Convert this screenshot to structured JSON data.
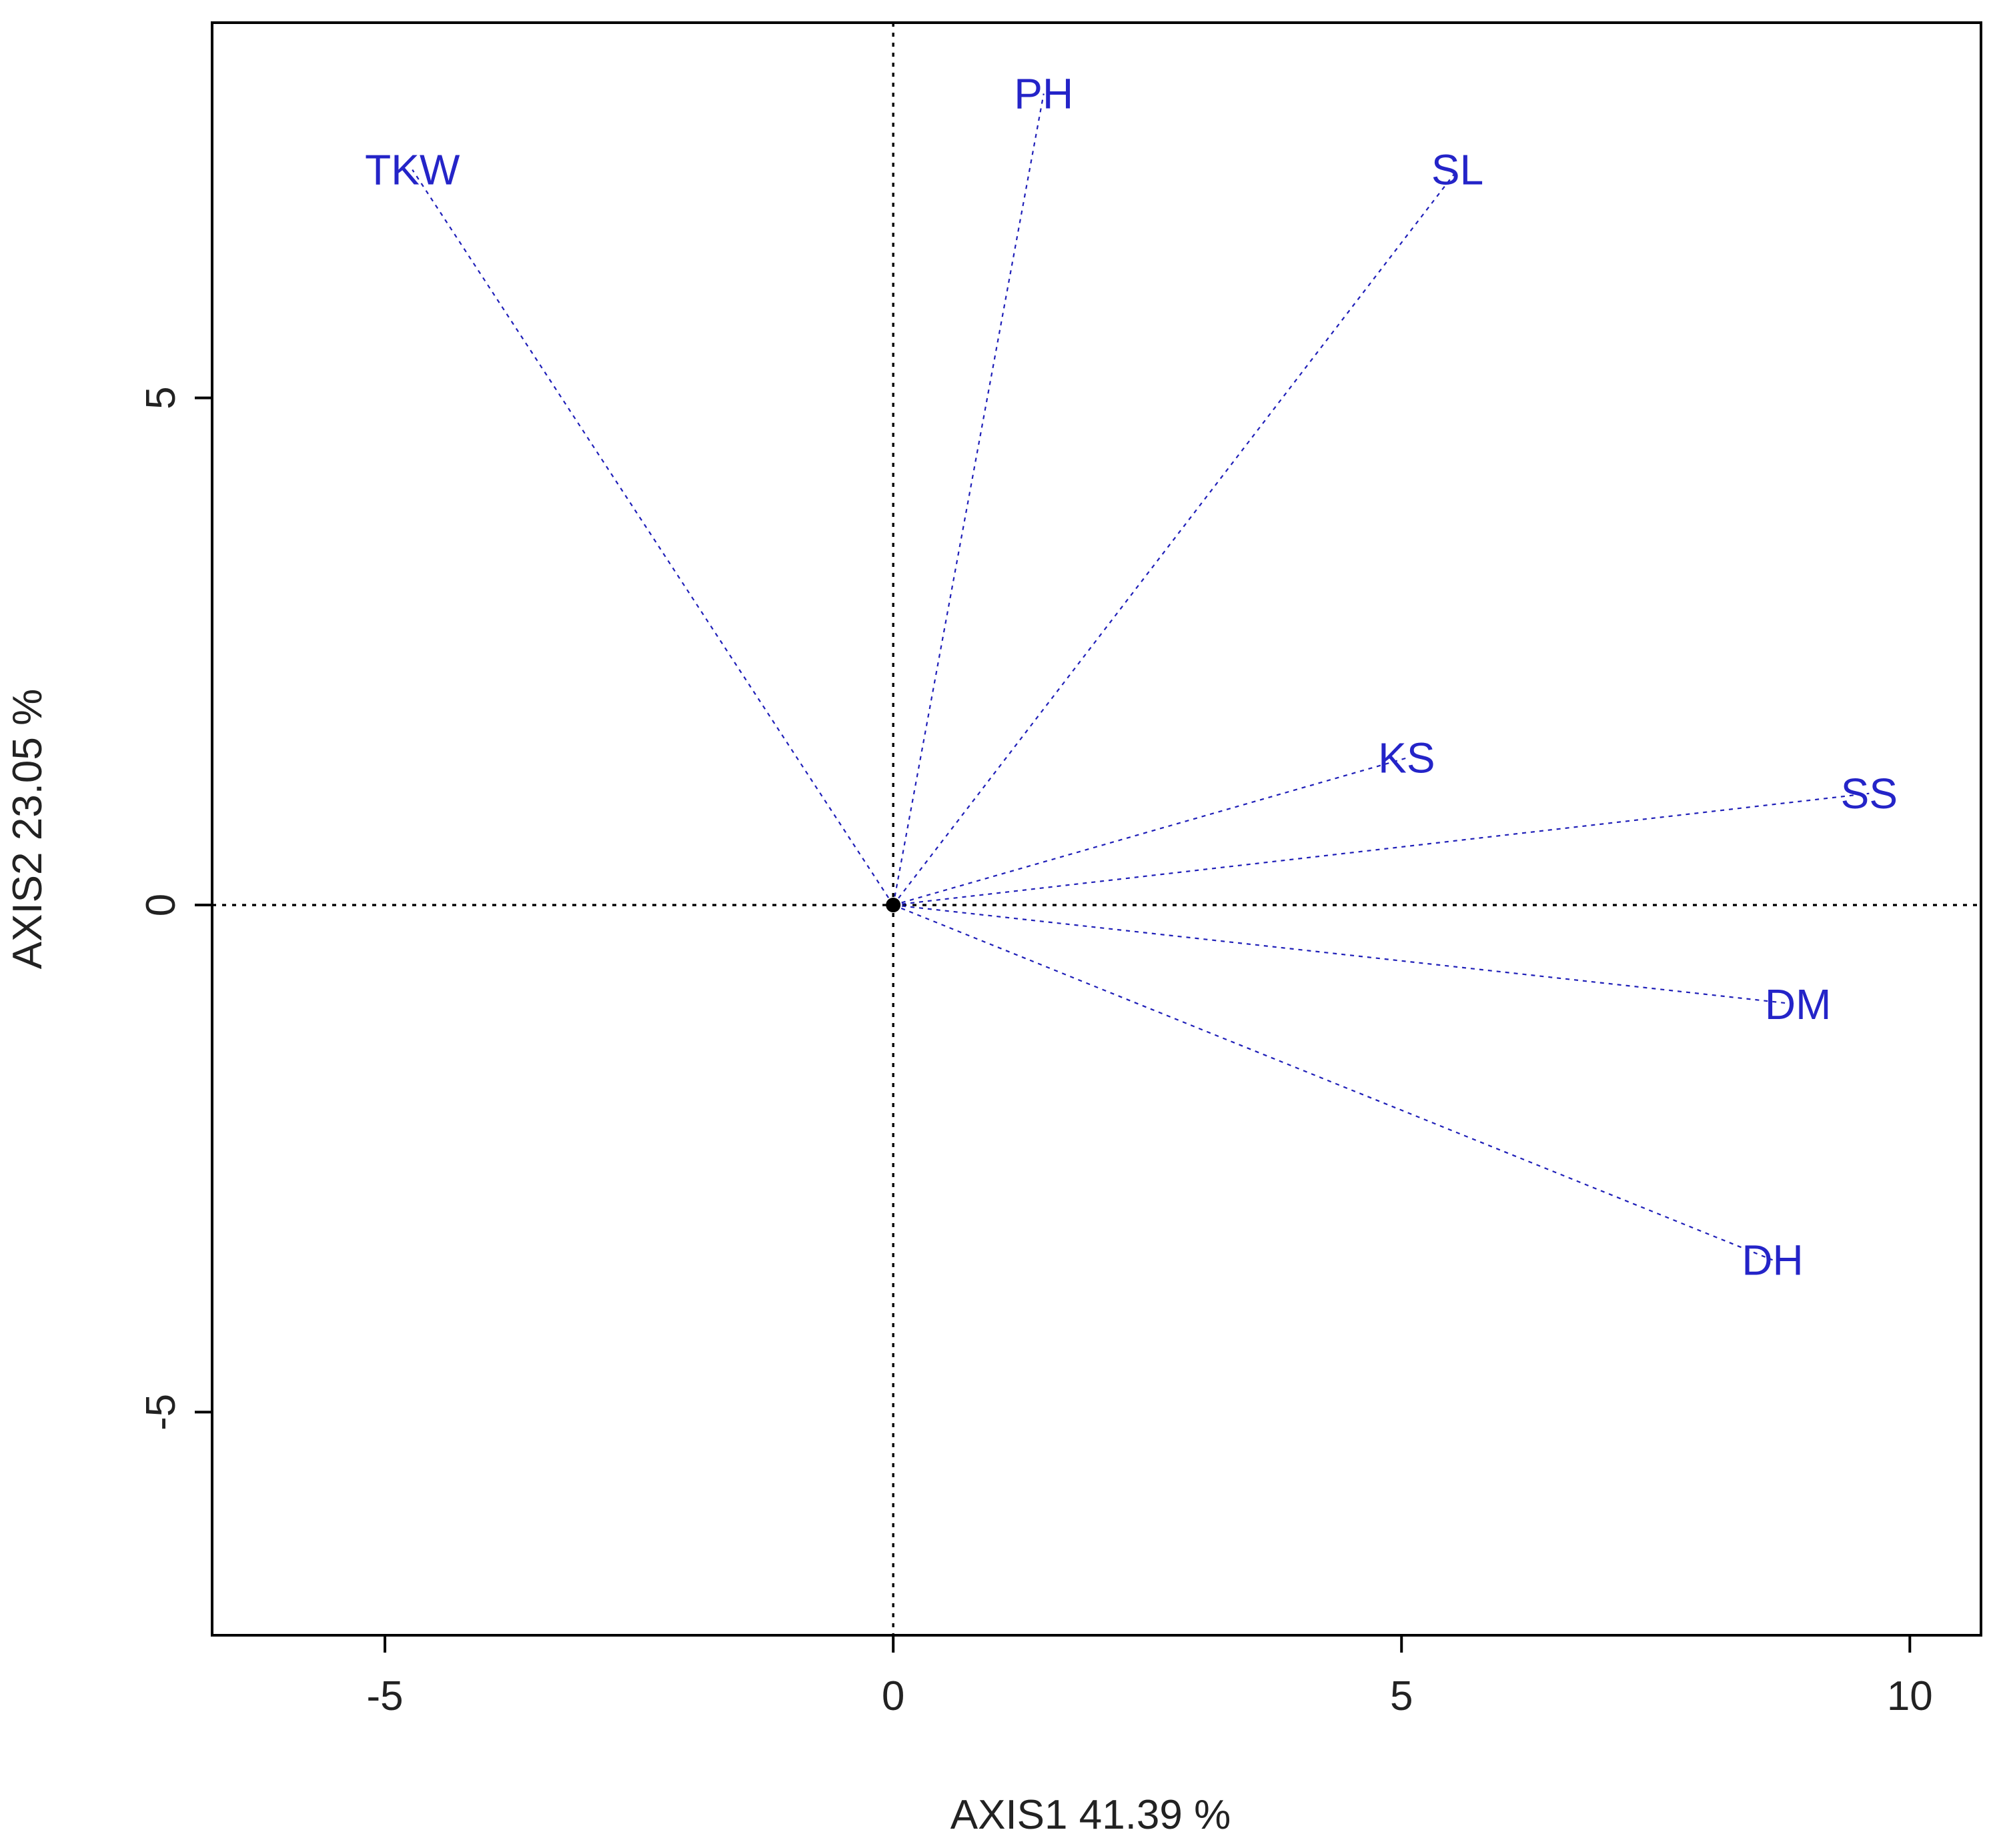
{
  "chart_data": {
    "type": "scatter",
    "subtype": "pca-biplot-vectors",
    "title": "",
    "xlabel": "AXIS1 41.39 %",
    "ylabel": "AXIS2 23.05 %",
    "xlim": [
      -6.7,
      10.7
    ],
    "ylim": [
      -7.2,
      8.7
    ],
    "x_ticks": [
      -5,
      0,
      5,
      10
    ],
    "x_tick_labels": [
      "-5",
      "0",
      "5",
      "10"
    ],
    "y_ticks": [
      -5,
      0,
      5
    ],
    "y_tick_labels": [
      "-5",
      "0",
      "5"
    ],
    "reference_lines": {
      "x": 0,
      "y": 0,
      "style": "dotted"
    },
    "origin": [
      0,
      0
    ],
    "vectors": [
      {
        "label": "TKW",
        "x": -4.73,
        "y": 7.25
      },
      {
        "label": "PH",
        "x": 1.48,
        "y": 8.0
      },
      {
        "label": "SL",
        "x": 5.55,
        "y": 7.25
      },
      {
        "label": "KS",
        "x": 5.05,
        "y": 1.45
      },
      {
        "label": "SS",
        "x": 9.6,
        "y": 1.1
      },
      {
        "label": "DM",
        "x": 8.9,
        "y": -0.98
      },
      {
        "label": "DH",
        "x": 8.65,
        "y": -3.5
      }
    ],
    "colors": {
      "vector": "#1f1fb8",
      "label": "#2424c8",
      "axis": "#000000"
    },
    "grid": false,
    "legend": "none"
  }
}
